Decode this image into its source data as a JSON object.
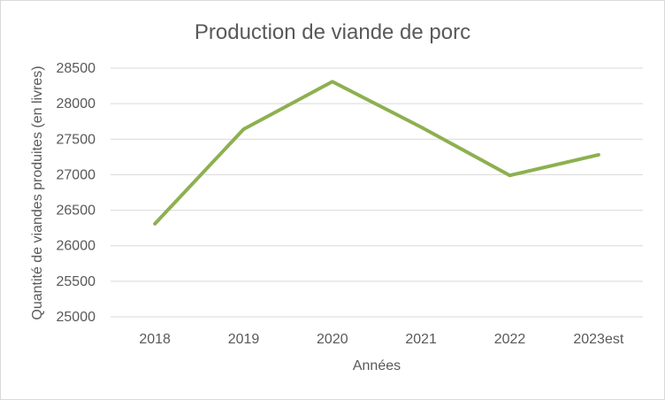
{
  "chart_data": {
    "type": "line",
    "title": "Production de viande de porc",
    "xlabel": "Années",
    "ylabel": "Quantité de viandes produites (en livres)",
    "categories": [
      "2018",
      "2019",
      "2020",
      "2021",
      "2022",
      "2023est"
    ],
    "ylim": [
      25000,
      28500
    ],
    "yticks": [
      25000,
      25500,
      26000,
      26500,
      27000,
      27500,
      28000,
      28500
    ],
    "grid": true,
    "series": [
      {
        "values": [
          26310,
          27640,
          28310,
          27670,
          26990,
          27280
        ],
        "color": "#8db050"
      }
    ]
  }
}
